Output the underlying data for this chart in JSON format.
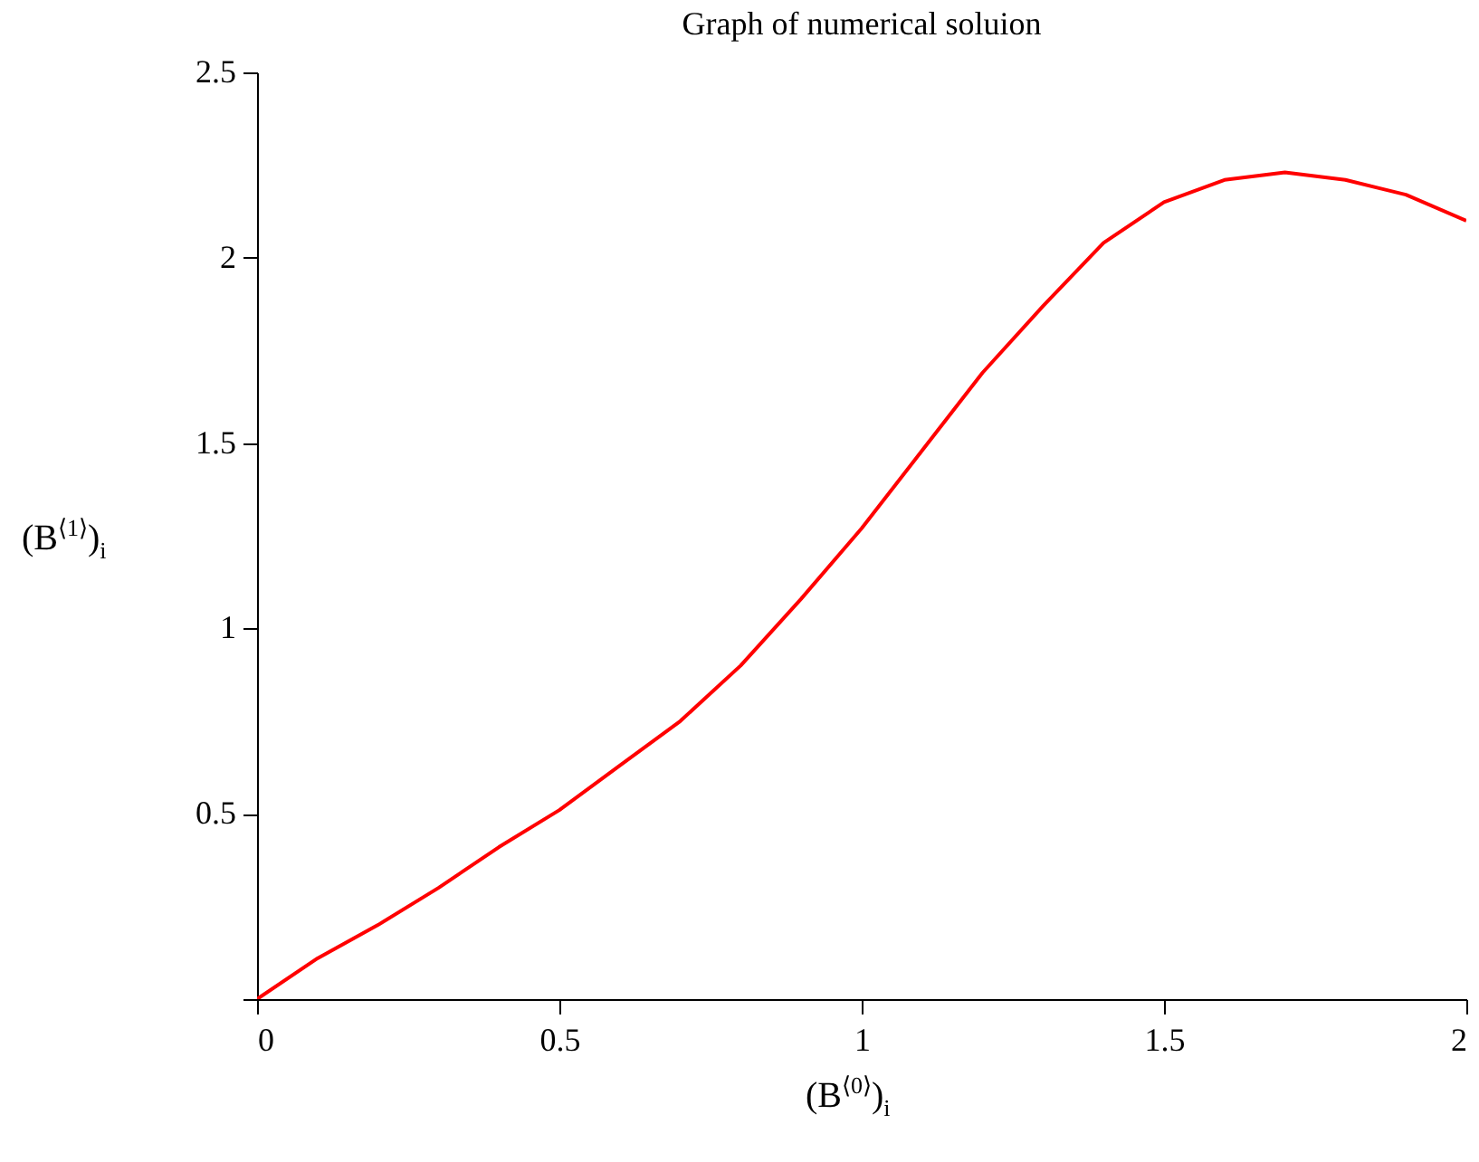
{
  "chart_data": {
    "type": "line",
    "title": "Graph of numerical soluion",
    "xlabel": "(B$^{⟨0⟩}$)$_{i}$",
    "ylabel": "(B$^{⟨1⟩}$)$_{i}$",
    "x": [
      0,
      0.1,
      0.2,
      0.3,
      0.4,
      0.5,
      0.6,
      0.7,
      0.8,
      0.9,
      1.0,
      1.1,
      1.2,
      1.3,
      1.4,
      1.5,
      1.6,
      1.7,
      1.8,
      1.9,
      2.0
    ],
    "series": [
      {
        "color": "#ff0000",
        "values": [
          0,
          0.11,
          0.2,
          0.3,
          0.41,
          0.51,
          0.63,
          0.75,
          0.9,
          1.08,
          1.27,
          1.48,
          1.69,
          1.87,
          2.04,
          2.15,
          2.21,
          2.23,
          2.21,
          2.17,
          2.1
        ]
      }
    ],
    "xlim": [
      0,
      2
    ],
    "ylim": [
      0,
      2.5
    ],
    "xticks": [
      0,
      0.5,
      1,
      1.5,
      2
    ],
    "yticks": [
      {
        "value": 0,
        "label": null
      },
      0.5,
      1,
      1.5,
      2,
      2.5
    ],
    "grid": false,
    "marker": "none",
    "line_style": "solid"
  }
}
